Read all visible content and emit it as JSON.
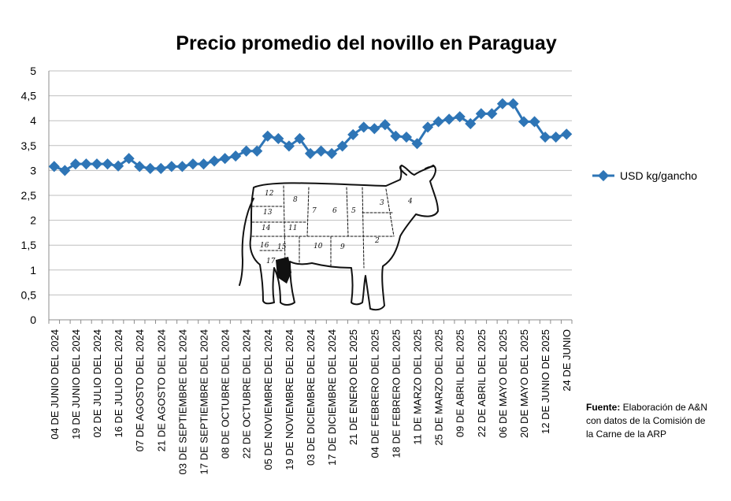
{
  "chart_data": {
    "type": "line",
    "title": "Precio promedio del novillo en Paraguay",
    "xlabel": "",
    "ylabel": "",
    "ylim": [
      0,
      5
    ],
    "yticks": [
      "0",
      "0,5",
      "1",
      "1,5",
      "2",
      "2,5",
      "3",
      "3,5",
      "4",
      "4,5",
      "5"
    ],
    "ytick_values": [
      0,
      0.5,
      1,
      1.5,
      2,
      2.5,
      3,
      3.5,
      4,
      4.5,
      5
    ],
    "grid": true,
    "legend": "right",
    "x_tick_labels": [
      "04 DE JUNIO  DEL 2024",
      "19 DE JUNIO  DEL 2024",
      "02 DE JULIO  DEL 2024",
      "16 DE JULIO  DEL 2024",
      "07 DE AGOSTO DEL 2024",
      "21 DE AGOSTO  DEL 2024",
      "03 DE SEPTIEMBRE DEL 2024",
      "17 DE SEPTIEMBRE DEL 2024",
      "08 DE OCTUBRE DEL 2024",
      "22 DE OCTUBRE  DEL 2024",
      "05 DE NOVIEMBRE DEL 2024",
      "19 DE NOVIEMBRE DEL 2024",
      "03 DE DICIEMBRE DEL 2024",
      "17 DE DICIEMBRE DEL 2024",
      "21 DE ENERO DEL 2025",
      "04 DE FEBRERO DEL 2025",
      "18 DE FEBRERO DEL 2025",
      "11 DE MARZO DEL 2025",
      "25 DE MARZO DEL 2025",
      "09 DE ABRIL  DEL 2025",
      "22 DE ABRIL DEL 2025",
      "06 DE MAYO DEL 2025",
      "20 DE MAYO DEL 2025",
      "12 DE JUNIO DE 2025",
      "24 DE JUNIO"
    ],
    "series": [
      {
        "name": "USD kg/gancho",
        "color": "#2E75B6",
        "values": [
          3.08,
          3.0,
          3.13,
          3.13,
          3.13,
          3.13,
          3.09,
          3.24,
          3.08,
          3.04,
          3.04,
          3.08,
          3.08,
          3.13,
          3.13,
          3.19,
          3.24,
          3.29,
          3.39,
          3.39,
          3.69,
          3.64,
          3.49,
          3.64,
          3.34,
          3.39,
          3.34,
          3.49,
          3.72,
          3.87,
          3.84,
          3.92,
          3.69,
          3.67,
          3.54,
          3.87,
          3.98,
          4.03,
          4.08,
          3.94,
          4.14,
          4.14,
          4.34,
          4.34,
          3.98,
          3.98,
          3.67,
          3.67,
          3.73
        ]
      }
    ]
  },
  "source_note": {
    "label": "Fuente:",
    "text": " Elaboración de A&N con datos de la Comisión de la Carne de la ARP"
  },
  "illustration": {
    "cut_numbers": [
      "12",
      "8",
      "7",
      "6",
      "5",
      "3",
      "4",
      "13",
      "14",
      "11",
      "16",
      "15",
      "10",
      "9",
      "2",
      "17"
    ]
  }
}
